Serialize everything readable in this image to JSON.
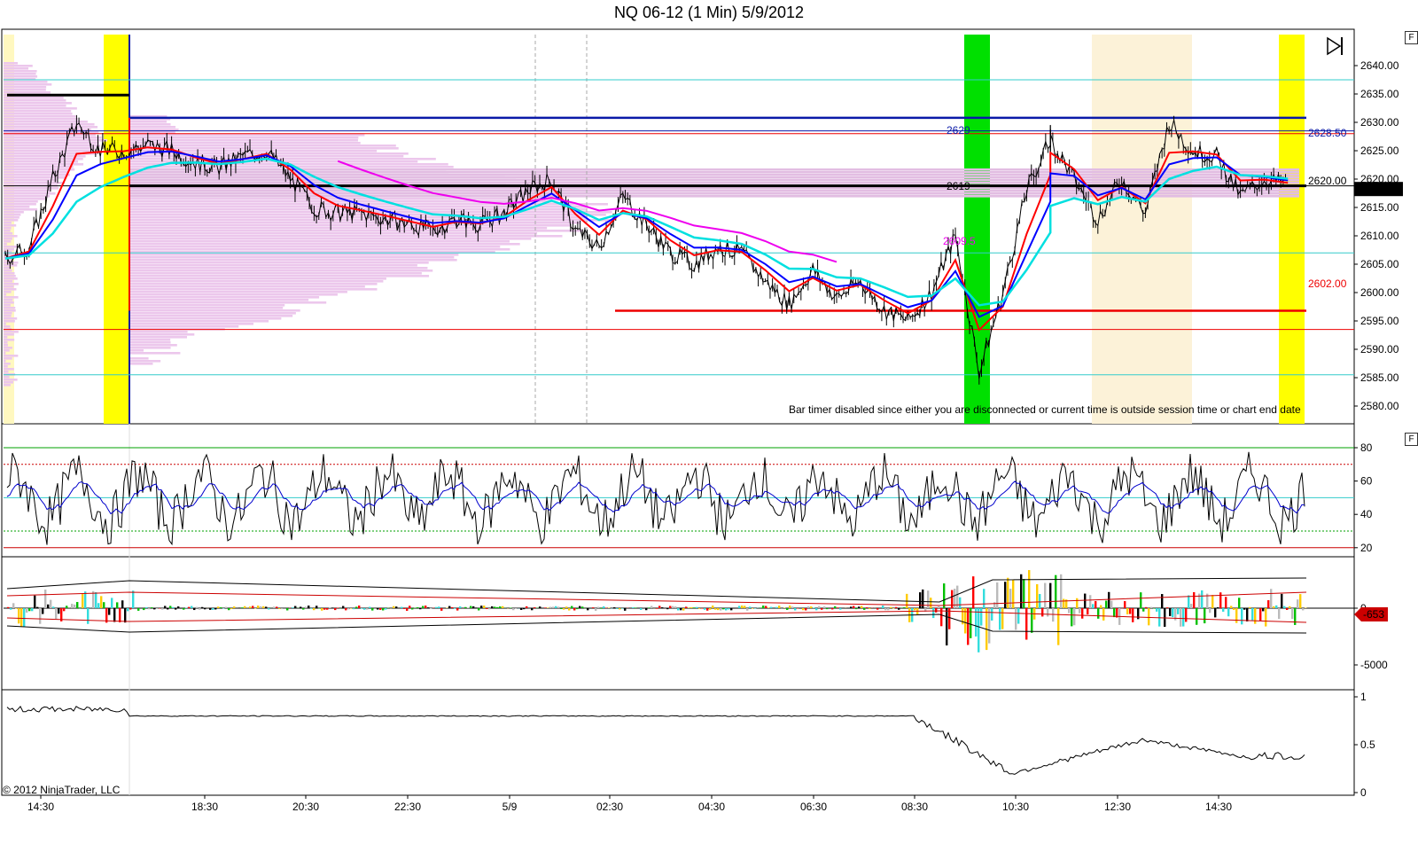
{
  "window": {
    "title": "NQ 06-12 (1 Min)  5/9/2012",
    "copyright": "© 2012 NinjaTrader, LLC",
    "panel_buttons": [
      "F",
      "F"
    ],
    "bar_timer_message": "Bar timer disabled since either you are disconnected or current time is outside session time or chart end date",
    "go_to_end_icon": "skip-to-end-icon"
  },
  "colors": {
    "session_yellow": "#ffff00",
    "session_green": "#00e000",
    "session_cream": "#fcf2d8",
    "volume_profile": "#ecc7ec",
    "price_bars": "#000000",
    "ema_fast": "#0000ff",
    "ema_mid": "#ff0000",
    "ema_slow": "#00e0e0",
    "vwap": "#ee00ee",
    "level_blue": "#0a1aa8",
    "level_red": "#ee0000",
    "level_black": "#000000",
    "cyan_lines": "#33cccc"
  },
  "chart_data": [
    {
      "type": "line",
      "name": "price",
      "x_ticks": [
        "14:30",
        "18:30",
        "20:30",
        "22:30",
        "5/9",
        "02:30",
        "04:30",
        "06:30",
        "08:30",
        "10:30",
        "12:30",
        "14:30"
      ],
      "y_ticks": [
        "2640.00",
        "2635.00",
        "2630.00",
        "2625.00",
        "2620.00",
        "2615.00",
        "2610.00",
        "2605.00",
        "2600.00",
        "2595.00",
        "2590.00",
        "2585.00",
        "2580.00"
      ],
      "ylim": [
        2576,
        2646
      ],
      "current_price": "2618.25",
      "levels": [
        {
          "label": "2629",
          "value": 2629,
          "color": "#0a1aa8"
        },
        {
          "label": "2619",
          "value": 2619,
          "color": "#000000"
        },
        {
          "label": "2609.5",
          "value": 2609.5,
          "color": "#ee00ee"
        },
        {
          "label": "2628.50",
          "value": 2628.5,
          "color": "#0a1aa8"
        },
        {
          "label": "2620.00",
          "value": 2620.0,
          "color": "#000000"
        },
        {
          "label": "2602.00",
          "value": 2602.0,
          "color": "#ee0000"
        }
      ],
      "horizontal_lines": [
        {
          "value": 2637.5,
          "color": "#33cccc"
        },
        {
          "value": 2630.8,
          "color": "#0a1aa8"
        },
        {
          "value": 2628.5,
          "color": "#0a1aa8"
        },
        {
          "value": 2628.0,
          "color": "#ee0000"
        },
        {
          "value": 2618.8,
          "color": "#000000"
        },
        {
          "value": 2607.0,
          "color": "#33cccc"
        },
        {
          "value": 2596.8,
          "color": "#ee0000"
        },
        {
          "value": 2593.5,
          "color": "#ee0000"
        },
        {
          "value": 2585.5,
          "color": "#33cccc"
        }
      ],
      "series": [
        {
          "name": "close",
          "x": [
            0,
            10,
            20,
            30,
            40,
            50,
            60,
            70,
            80,
            90,
            100,
            110,
            120,
            130,
            140,
            150,
            160,
            170,
            180,
            190,
            200,
            210,
            220,
            230,
            240,
            250,
            260,
            270,
            280,
            290,
            300,
            310,
            320,
            330,
            340,
            350,
            360,
            370,
            380,
            390,
            400,
            410,
            420,
            430,
            440
          ],
          "values": [
            2606,
            2608,
            2620,
            2630,
            2625,
            2625,
            2626,
            2625,
            2623,
            2622,
            2624,
            2625,
            2620,
            2615,
            2614,
            2614,
            2613,
            2612,
            2611,
            2613,
            2612,
            2614,
            2618,
            2620,
            2611,
            2608,
            2617,
            2612,
            2607,
            2605,
            2608,
            2607,
            2602,
            2598,
            2604,
            2599,
            2602,
            2597,
            2595,
            2600,
            2610,
            2586,
            2600,
            2618,
            2627
          ]
        },
        {
          "name": "close_late",
          "x": [
            440,
            450,
            460,
            470,
            480,
            490,
            500,
            510,
            520,
            530,
            540
          ],
          "values": [
            2627,
            2620,
            2613,
            2620,
            2614,
            2630,
            2625,
            2624,
            2617,
            2620,
            2619
          ]
        }
      ]
    },
    {
      "type": "line",
      "name": "oscillator",
      "y_ticks": [
        "80",
        "60",
        "40",
        "20"
      ],
      "ylim": [
        15,
        85
      ],
      "reference_lines": [
        80,
        70,
        50,
        30,
        20
      ]
    },
    {
      "type": "bar",
      "name": "volume_delta",
      "y_ticks": [
        "0",
        "-5000"
      ],
      "current_value": "-653"
    },
    {
      "type": "line",
      "name": "ratio",
      "y_ticks": [
        "1",
        "0.5",
        "0"
      ],
      "ylim": [
        0,
        1
      ]
    }
  ]
}
